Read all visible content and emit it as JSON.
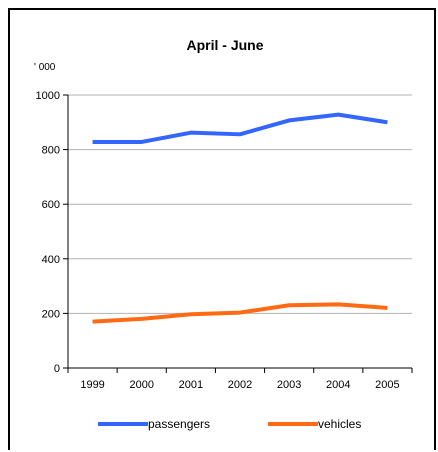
{
  "chart_data": {
    "type": "line",
    "title": "April - June",
    "unit_label": "' 000",
    "xlabel": "",
    "ylabel": "",
    "categories": [
      "1999",
      "2000",
      "2001",
      "2002",
      "2003",
      "2004",
      "2005"
    ],
    "y_ticks": [
      "0",
      "200",
      "400",
      "600",
      "800",
      "1000"
    ],
    "ylim": [
      0,
      1000
    ],
    "grid": true,
    "legend_position": "bottom",
    "series": [
      {
        "name": "passengers",
        "color": "#3366ff",
        "values": [
          828,
          828,
          862,
          856,
          907,
          928,
          900
        ]
      },
      {
        "name": "vehicles",
        "color": "#ff6a13",
        "values": [
          170,
          180,
          197,
          203,
          230,
          233,
          220
        ]
      }
    ]
  }
}
